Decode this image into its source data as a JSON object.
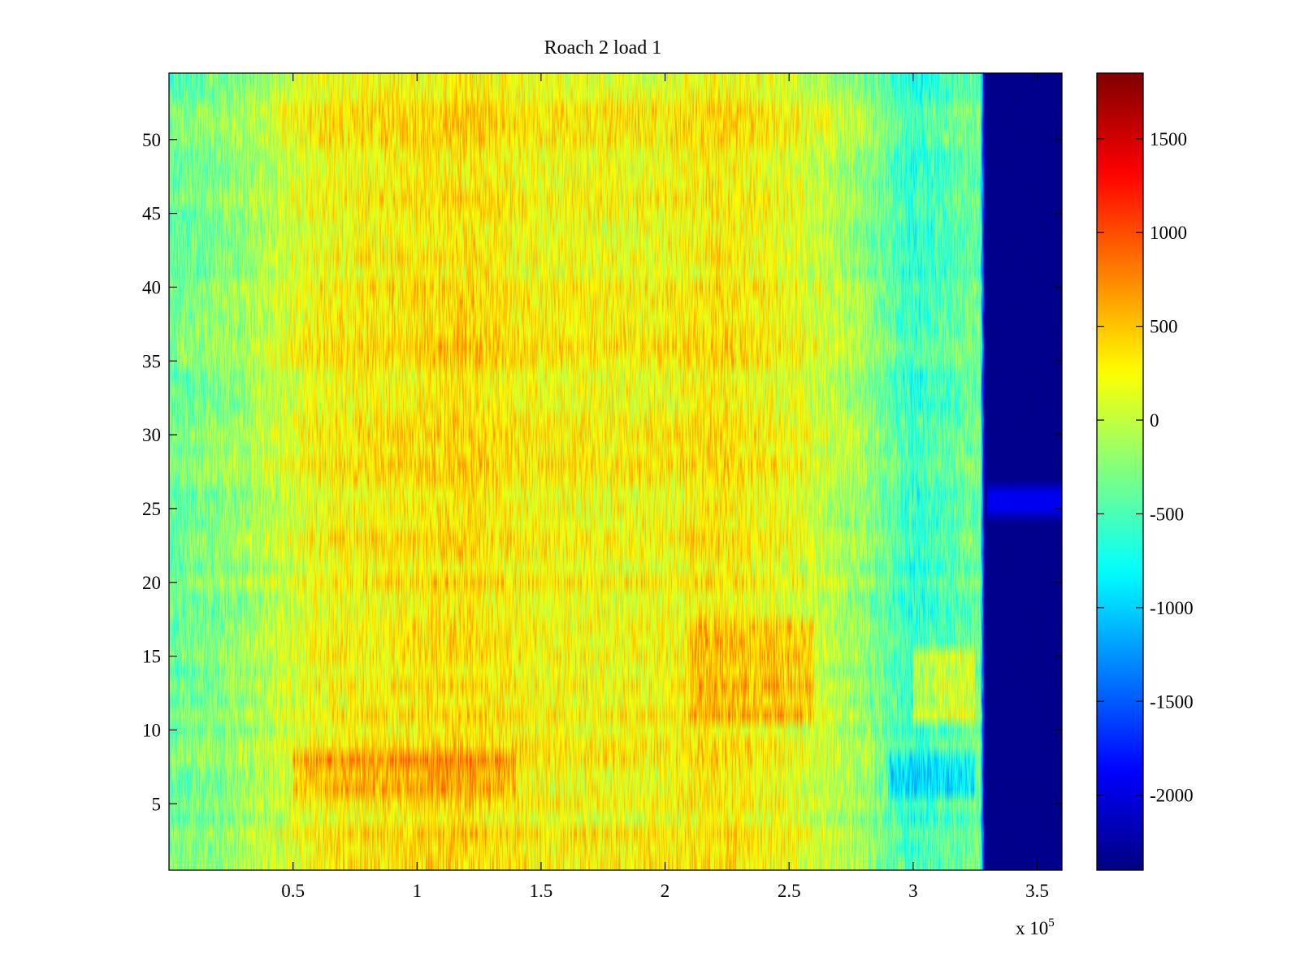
{
  "chart_data": {
    "type": "heatmap",
    "title": "Roach 2 load 1",
    "xlabel": "",
    "ylabel": "",
    "x_exponent_label": "x 10",
    "x_exponent_power": "5",
    "xlim": [
      0,
      3.6
    ],
    "ylim": [
      0.5,
      54.5
    ],
    "x_ticks": [
      {
        "value": 0.5,
        "label": "0.5"
      },
      {
        "value": 1,
        "label": "1"
      },
      {
        "value": 1.5,
        "label": "1.5"
      },
      {
        "value": 2,
        "label": "2"
      },
      {
        "value": 2.5,
        "label": "2.5"
      },
      {
        "value": 3,
        "label": "3"
      },
      {
        "value": 3.5,
        "label": "3.5"
      }
    ],
    "y_ticks": [
      {
        "value": 5,
        "label": "5"
      },
      {
        "value": 10,
        "label": "10"
      },
      {
        "value": 15,
        "label": "15"
      },
      {
        "value": 20,
        "label": "20"
      },
      {
        "value": 25,
        "label": "25"
      },
      {
        "value": 30,
        "label": "30"
      },
      {
        "value": 35,
        "label": "35"
      },
      {
        "value": 40,
        "label": "40"
      },
      {
        "value": 45,
        "label": "45"
      },
      {
        "value": 50,
        "label": "50"
      }
    ],
    "rows": 54,
    "colormap": "jet",
    "clim": [
      -2400,
      1850
    ],
    "colorbar_ticks": [
      {
        "value": 1500,
        "label": "1500"
      },
      {
        "value": 1000,
        "label": "1000"
      },
      {
        "value": 500,
        "label": "500"
      },
      {
        "value": 0,
        "label": "0"
      },
      {
        "value": -500,
        "label": "-500"
      },
      {
        "value": -1000,
        "label": "-1000"
      },
      {
        "value": -1500,
        "label": "-1500"
      },
      {
        "value": -2000,
        "label": "-2000"
      }
    ],
    "column_profile": {
      "x": [
        0,
        0.3,
        0.6,
        1.0,
        1.2,
        1.5,
        2.0,
        2.2,
        2.5,
        2.8,
        3.0,
        3.27,
        3.29,
        3.6
      ],
      "values": [
        -350,
        -150,
        250,
        350,
        400,
        250,
        250,
        350,
        200,
        -150,
        -600,
        -300,
        -2350,
        -2350
      ]
    },
    "row_bands": [
      {
        "rows": [
          6,
          8
        ],
        "x": [
          0.5,
          1.4
        ],
        "values": [
          650,
          650
        ]
      },
      {
        "rows": [
          6,
          8
        ],
        "x": [
          2.9,
          3.25
        ],
        "values": [
          -1000,
          -1000
        ]
      },
      {
        "rows": [
          11,
          17
        ],
        "x": [
          2.1,
          2.6
        ],
        "values": [
          500,
          500
        ]
      },
      {
        "rows": [
          11,
          15
        ],
        "x": [
          3.0,
          3.25
        ],
        "values": [
          300,
          300
        ]
      },
      {
        "rows": [
          25,
          26
        ],
        "x": [
          3.3,
          3.6
        ],
        "values": [
          -1800,
          -1800
        ]
      }
    ]
  }
}
